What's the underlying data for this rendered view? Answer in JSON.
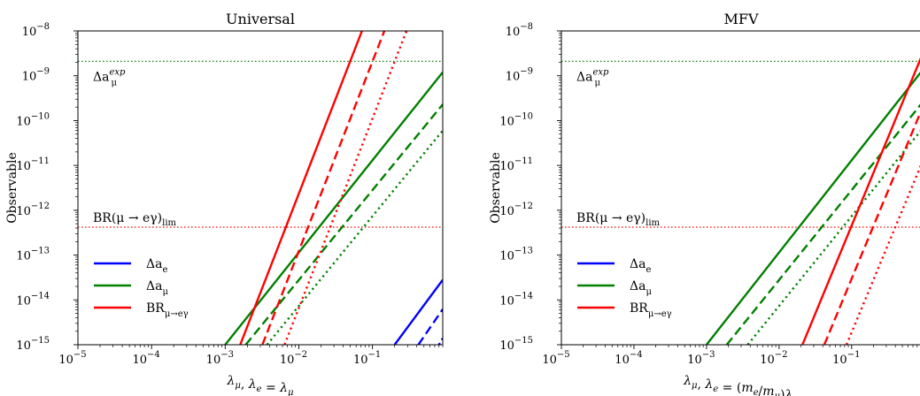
{
  "chart_data": [
    {
      "type": "line",
      "title": "Universal",
      "xlabel": "λμ, λe = λμ",
      "ylabel": "Observable",
      "xscale": "log",
      "yscale": "log",
      "xlim": [
        1e-05,
        0.9
      ],
      "ylim": [
        1e-15,
        1e-08
      ],
      "xticks": [
        {
          "v": 1e-05,
          "e": "−5"
        },
        {
          "v": 0.0001,
          "e": "−4"
        },
        {
          "v": 0.001,
          "e": "−3"
        },
        {
          "v": 0.01,
          "e": "−2"
        },
        {
          "v": 0.1,
          "e": "−1"
        }
      ],
      "yticks": [
        {
          "v": 1e-15,
          "e": "−15"
        },
        {
          "v": 1e-14,
          "e": "−14"
        },
        {
          "v": 1e-13,
          "e": "−13"
        },
        {
          "v": 1e-12,
          "e": "−12"
        },
        {
          "v": 1e-11,
          "e": "−11"
        },
        {
          "v": 1e-10,
          "e": "−10"
        },
        {
          "v": 1e-09,
          "e": "−9"
        },
        {
          "v": 1e-08,
          "e": "−8"
        }
      ],
      "hlines": [
        {
          "label": "Δa_μ^exp",
          "value": 2.1e-09,
          "color": "#008000"
        },
        {
          "label": "BR(μ → eγ)_lim",
          "value": 4.2e-13,
          "color": "#ff0000"
        }
      ],
      "legend": {
        "placement": "lower-left",
        "entries": [
          {
            "label": "Δa_e",
            "color": "#0000ff"
          },
          {
            "label": "Δa_μ",
            "color": "#008000"
          },
          {
            "label": "BR_μ→eγ",
            "color": "#ff0000"
          }
        ]
      },
      "series": [
        {
          "color": "#0000ff",
          "dash": "solid",
          "points": [
            [
              0.2,
              1e-15
            ],
            [
              0.9,
              2.8e-14
            ]
          ]
        },
        {
          "color": "#0000ff",
          "dash": "dashed",
          "points": [
            [
              0.42,
              1e-15
            ],
            [
              0.9,
              6.2e-15
            ]
          ]
        },
        {
          "color": "#0000ff",
          "dash": "dotted",
          "points": [
            [
              0.8,
              1e-15
            ],
            [
              0.9,
              1.4e-15
            ]
          ]
        },
        {
          "color": "#008000",
          "dash": "solid",
          "points": [
            [
              0.001,
              1e-15
            ],
            [
              0.9,
              1.2e-09
            ]
          ]
        },
        {
          "color": "#008000",
          "dash": "dashed",
          "points": [
            [
              0.0019,
              1e-15
            ],
            [
              0.9,
              2.3e-10
            ]
          ]
        },
        {
          "color": "#008000",
          "dash": "dotted",
          "points": [
            [
              0.0037,
              1e-15
            ],
            [
              0.9,
              6e-11
            ]
          ]
        },
        {
          "color": "#ff0000",
          "dash": "solid",
          "points": [
            [
              0.0016,
              1e-15
            ],
            [
              0.072,
              1e-08
            ]
          ]
        },
        {
          "color": "#ff0000",
          "dash": "dashed",
          "points": [
            [
              0.0032,
              1e-15
            ],
            [
              0.145,
              1e-08
            ]
          ]
        },
        {
          "color": "#ff0000",
          "dash": "dotted",
          "points": [
            [
              0.0064,
              1e-15
            ],
            [
              0.29,
              1e-08
            ]
          ]
        }
      ]
    },
    {
      "type": "line",
      "title": "MFV",
      "xlabel": "λμ, λe = (me/mμ)λμ",
      "ylabel": "Observable",
      "xscale": "log",
      "yscale": "log",
      "xlim": [
        1e-05,
        0.9
      ],
      "ylim": [
        1e-15,
        1e-08
      ],
      "xticks": [
        {
          "v": 1e-05,
          "e": "−5"
        },
        {
          "v": 0.0001,
          "e": "−4"
        },
        {
          "v": 0.001,
          "e": "−3"
        },
        {
          "v": 0.01,
          "e": "−2"
        },
        {
          "v": 0.1,
          "e": "−1"
        }
      ],
      "yticks": [
        {
          "v": 1e-15,
          "e": "−15"
        },
        {
          "v": 1e-14,
          "e": "−14"
        },
        {
          "v": 1e-13,
          "e": "−13"
        },
        {
          "v": 1e-12,
          "e": "−12"
        },
        {
          "v": 1e-11,
          "e": "−11"
        },
        {
          "v": 1e-10,
          "e": "−10"
        },
        {
          "v": 1e-09,
          "e": "−9"
        },
        {
          "v": 1e-08,
          "e": "−8"
        }
      ],
      "hlines": [
        {
          "label": "Δa_μ^exp",
          "value": 2.1e-09,
          "color": "#008000"
        },
        {
          "label": "BR(μ → eγ)_lim",
          "value": 4.2e-13,
          "color": "#ff0000"
        }
      ],
      "legend": {
        "placement": "lower-left",
        "entries": [
          {
            "label": "Δa_e",
            "color": "#0000ff"
          },
          {
            "label": "Δa_μ",
            "color": "#008000"
          },
          {
            "label": "BR_μ→eγ",
            "color": "#ff0000"
          }
        ]
      },
      "series": [
        {
          "color": "#008000",
          "dash": "solid",
          "points": [
            [
              0.001,
              1e-15
            ],
            [
              0.9,
              1.2e-09
            ]
          ]
        },
        {
          "color": "#008000",
          "dash": "dashed",
          "points": [
            [
              0.0019,
              1e-15
            ],
            [
              0.9,
              2.3e-10
            ]
          ]
        },
        {
          "color": "#008000",
          "dash": "dotted",
          "points": [
            [
              0.0037,
              1e-15
            ],
            [
              0.9,
              6e-11
            ]
          ]
        },
        {
          "color": "#ff0000",
          "dash": "solid",
          "points": [
            [
              0.021,
              1e-15
            ],
            [
              0.9,
              2.5e-09
            ]
          ]
        },
        {
          "color": "#ff0000",
          "dash": "dashed",
          "points": [
            [
              0.042,
              1e-15
            ],
            [
              0.9,
              1.6e-10
            ]
          ]
        },
        {
          "color": "#ff0000",
          "dash": "dotted",
          "points": [
            [
              0.085,
              1e-15
            ],
            [
              0.9,
              1e-11
            ]
          ]
        }
      ]
    }
  ]
}
